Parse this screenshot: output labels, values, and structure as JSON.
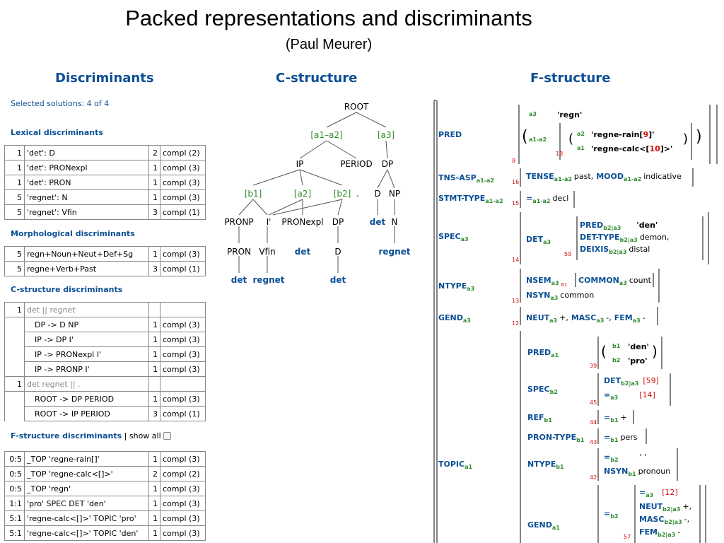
{
  "slide": {
    "title": "Packed representations and discriminants",
    "subtitle": "(Paul Meurer)"
  },
  "headings": {
    "discriminants": "Discriminants",
    "cstructure": "C-structure",
    "fstructure": "F-structure"
  },
  "disc": {
    "selected": "Selected solutions: 4 of 4",
    "lexical": {
      "title": "Lexical discriminants",
      "rows": [
        [
          "1",
          "'det': D",
          "2",
          "compl (2)"
        ],
        [
          "1",
          "'det': PRONexpl",
          "1",
          "compl (3)"
        ],
        [
          "1",
          "'det': PRON",
          "1",
          "compl (3)"
        ],
        [
          "5",
          "'regnet': N",
          "1",
          "compl (3)"
        ],
        [
          "5",
          "'regnet': Vfin",
          "3",
          "compl (1)"
        ]
      ]
    },
    "morph": {
      "title": "Morphological discriminants",
      "rows": [
        [
          "5",
          "regn+Noun+Neut+Def+Sg",
          "1",
          "compl (3)"
        ],
        [
          "5",
          "regne+Verb+Past",
          "3",
          "compl (1)"
        ]
      ]
    },
    "cstr": {
      "title": "C-structure discriminants",
      "g1": {
        "n": "1",
        "label": "det || regnet"
      },
      "g1rows": [
        [
          "DP -> D NP",
          "1",
          "compl (3)"
        ],
        [
          "IP -> DP I'",
          "1",
          "compl (3)"
        ],
        [
          "IP -> PRONexpl I'",
          "1",
          "compl (3)"
        ],
        [
          "IP -> PRONP I'",
          "1",
          "compl (3)"
        ]
      ],
      "g2": {
        "n": "1",
        "label": "det regnet || ."
      },
      "g2rows": [
        [
          "ROOT -> DP PERIOD",
          "1",
          "compl (3)"
        ],
        [
          "ROOT -> IP PERIOD",
          "3",
          "compl (1)"
        ]
      ]
    },
    "fstr": {
      "title": "F-structure discriminants",
      "extra": " | show all",
      "rows": [
        [
          "0:5",
          "_TOP 'regne-rain[]'",
          "1",
          "compl (3)"
        ],
        [
          "0:5",
          "_TOP 'regne-calc<[]>'",
          "2",
          "compl (2)"
        ],
        [
          "0:5",
          "_TOP 'regn'",
          "1",
          "compl (3)"
        ],
        [
          "1:1",
          "'pro' SPEC DET 'den'",
          "1",
          "compl (3)"
        ],
        [
          "5:1",
          "'regne-calc<[]>' TOPIC 'pro'",
          "1",
          "compl (3)"
        ],
        [
          "5:1",
          "'regne-calc<[]>' TOPIC 'den'",
          "1",
          "compl (3)"
        ]
      ]
    }
  },
  "ctree": {
    "root": "ROOT",
    "a1a2": "[a1–a2]",
    "a3": "[a3]",
    "ip": "IP",
    "period": "PERIOD",
    "dp": "DP",
    "b1": "[b1]",
    "a2": "[a2]",
    "b2": "[b2]",
    "dot": ".",
    "d": "D",
    "np": "NP",
    "pronp": "PRONP",
    "ibar": "I'",
    "pronexpl": "PRONexpl",
    "dp2": "DP",
    "det1": "det",
    "n": "N",
    "pron": "PRON",
    "vfin": "Vfin",
    "det2": "det",
    "d2": "D",
    "regnet1": "regnet",
    "det3": "det",
    "regnet2": "regnet",
    "det4": "det"
  },
  "fs": {
    "pred": "PRED",
    "tnsasp": "TNS-ASP",
    "tnsasp_sub": "a1-a2",
    "stmt": "STMT-TYPE",
    "stmt_sub": "a1-a2",
    "spec": "SPEC",
    "spec_sub": "a3",
    "ntype": "NTYPE",
    "ntype_sub": "a3",
    "gend": "GEND",
    "gend_sub": "a3",
    "topic": "TOPIC",
    "topic_sub": "a1",
    "pred_a3": "a3",
    "pred_regn": "'regn'",
    "pred_a1a2": "a1-a2",
    "pred_a2": "a2",
    "pred_rain": "'regne-rain[",
    "pred_rain_n": "9",
    "pred_rain_end": "]'",
    "pred_a1": "a1",
    "pred_calc": "'regne-calc<[",
    "pred_calc_n": "10",
    "pred_calc_end": "]>'",
    "n8": "8",
    "n18": "18",
    "tense": "TENSE",
    "tense_sub": "a1-a2",
    "tense_val": "past,",
    "mood": "MOOD",
    "mood_sub": "a1-a2",
    "mood_val": "indicative",
    "n16": "16",
    "stmt_eq": "=",
    "stmt_eq_sub": "a1-a2",
    "stmt_val": "decl",
    "n15": "15",
    "det": "DET",
    "det_sub": "a3",
    "spec_pred": "PRED",
    "spec_pred_sub": "b2|a3",
    "spec_pred_val": "'den'",
    "dettype": "DET-TYPE",
    "dettype_sub": "b2|a3",
    "dettype_val": "demon,",
    "deixis": "DEIXIS",
    "deixis_sub": "b2|a3",
    "deixis_val": "distal",
    "n59": "59",
    "n14": "14",
    "nsem": "NSEM",
    "nsem_sub": "a3",
    "n61": "61",
    "common": "COMMON",
    "common_sub": "a3",
    "common_val": "count",
    "nsyn": "NSYN",
    "nsyn_sub": "a3",
    "nsyn_val": "common",
    "n13": "13",
    "neut": "NEUT",
    "neut_sub": "a3",
    "neut_val": "+,",
    "masc": "MASC",
    "masc_sub": "a3",
    "masc_val": "-,",
    "fem": "FEM",
    "fem_sub": "a3",
    "fem_val": "-",
    "n12": "12",
    "t_pred": "PRED",
    "t_pred_sub": "a1",
    "t_b1": "b1",
    "t_den": "'den'",
    "t_b2": "b2",
    "t_pro": "'pro'",
    "n39": "39",
    "t_spec": "SPEC",
    "t_spec_sub": "b2",
    "t_det": "DET",
    "t_det_sub": "b2|a3",
    "t_det_ref": "[59]",
    "t_eq": "=",
    "t_eq_sub": "a3",
    "t_eq_ref": "[14]",
    "n45": "45",
    "ref": "REF",
    "ref_sub": "b1",
    "ref_eq": "=",
    "ref_eq_sub": "b1",
    "ref_val": "+",
    "n44": "44",
    "prontype": "PRON-TYPE",
    "prontype_sub": "b1",
    "prontype_eq": "=",
    "prontype_eq_sub": "b1",
    "prontype_val": "pers",
    "n43": "43",
    "t_ntype": "NTYPE",
    "t_ntype_sub": "b1",
    "t_ntype_eq": "=",
    "t_ntype_eq_sub": "b2",
    "t_ntype_q": "' '",
    "t_nsyn": "NSYN",
    "t_nsyn_sub": "b1",
    "t_nsyn_val": "pronoun",
    "n42": "42",
    "t_gend": "GEND",
    "t_gend_sub": "a1",
    "t_gend_eq": "=",
    "t_gend_eq_sub": "b2",
    "g_eq": "=",
    "g_eq_sub": "a3",
    "g_ref": "[12]",
    "g_neut": "NEUT",
    "g_neut_sub": "b2|a3",
    "g_neut_val": "+,",
    "g_masc": "MASC",
    "g_masc_sub": "b2|a3",
    "g_masc_val": "-,",
    "g_fem": "FEM",
    "g_fem_sub": "b2|a3",
    "g_fem_val": "-",
    "n57": "57"
  },
  "colors": {
    "blue": "#0b4f95",
    "green": "#2e8b2e",
    "red": "#d01010"
  }
}
